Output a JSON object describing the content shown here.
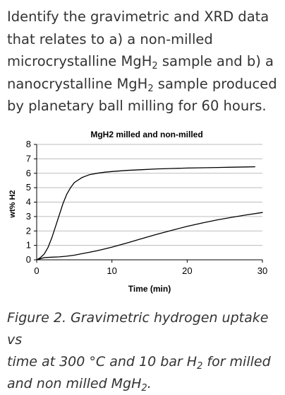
{
  "question": {
    "line1": "Identify the gravimetric and XRD data",
    "line2": "that relates to a) a non-milled",
    "line3_pre": "microcrystalline MgH",
    "line3_sub": "2",
    "line3_post": " sample and b) a",
    "line4_pre": "nanocrystalline MgH",
    "line4_sub": "2",
    "line4_post": " sample produced",
    "line5": "by planetary ball milling for 60 hours."
  },
  "chart_data": {
    "type": "line",
    "title": "MgH2 milled and non-milled",
    "xlabel": "Time (min)",
    "ylabel": "wt% H2",
    "xlim": [
      0,
      30
    ],
    "ylim": [
      0,
      8
    ],
    "xticks": [
      0,
      10,
      20,
      30
    ],
    "yticks": [
      0,
      1,
      2,
      3,
      4,
      5,
      6,
      7,
      8
    ],
    "grid": "horizontal",
    "legend": "none",
    "series": [
      {
        "x": [
          0,
          0.5,
          1,
          1.5,
          2,
          2.5,
          3,
          3.5,
          4,
          4.5,
          5,
          6,
          7,
          8,
          9,
          10,
          12,
          14,
          16,
          18,
          20,
          22,
          24,
          26,
          28,
          29
        ],
        "y": [
          0,
          0.15,
          0.4,
          0.85,
          1.5,
          2.3,
          3.1,
          3.9,
          4.55,
          5.0,
          5.35,
          5.7,
          5.9,
          6.0,
          6.07,
          6.12,
          6.2,
          6.25,
          6.3,
          6.33,
          6.36,
          6.38,
          6.4,
          6.42,
          6.44,
          6.45
        ],
        "color": "#000000"
      },
      {
        "x": [
          0,
          1,
          2,
          3,
          4,
          5,
          6,
          7,
          8,
          9,
          10,
          12,
          14,
          16,
          18,
          20,
          22,
          24,
          26,
          28,
          30
        ],
        "y": [
          0,
          0.15,
          0.18,
          0.2,
          0.25,
          0.32,
          0.42,
          0.52,
          0.63,
          0.75,
          0.88,
          1.17,
          1.47,
          1.77,
          2.05,
          2.32,
          2.55,
          2.77,
          2.95,
          3.12,
          3.28
        ],
        "color": "#000000"
      }
    ]
  },
  "caption": {
    "part1": "Figure 2. Gravimetric hydrogen uptake vs",
    "part2_pre": "time at 300 °C and 10 bar H",
    "part2_sub": "2",
    "part2_post": " for milled",
    "part3_pre": "and non milled MgH",
    "part3_sub": "2",
    "part3_post": "."
  }
}
